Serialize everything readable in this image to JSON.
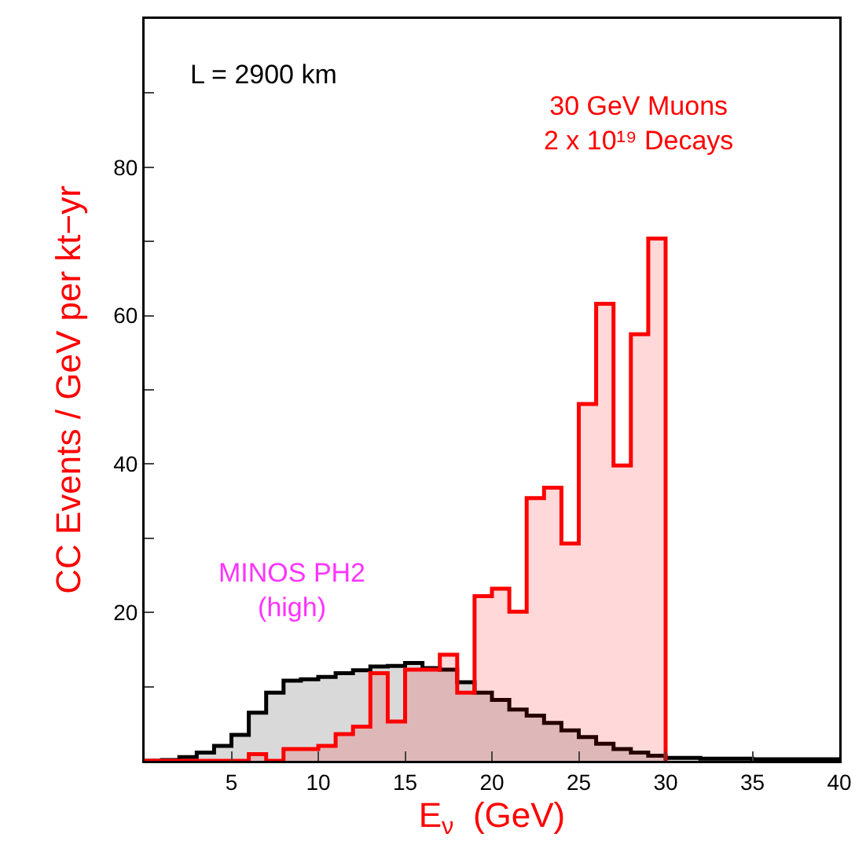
{
  "chart_data": {
    "type": "histogram",
    "xlabel": "E$_{ν}$  (GeV)",
    "ylabel": "CC Events / GeV per kt−yr",
    "annotations": [
      "L = 2900 km"
    ],
    "xlim": [
      0,
      40
    ],
    "xticks": [
      5,
      10,
      15,
      20,
      25,
      30,
      35,
      40
    ],
    "ylim": [
      0,
      100
    ],
    "yticks": [
      {
        "value": 10,
        "label": null
      },
      20,
      {
        "value": 30,
        "label": null
      },
      40,
      {
        "value": 50,
        "label": null
      },
      60,
      {
        "value": 70,
        "label": null
      },
      80,
      {
        "value": 90,
        "label": null
      }
    ],
    "grid": false,
    "legend": false,
    "bins": [
      0,
      1,
      2,
      3,
      4,
      5,
      6,
      7,
      8,
      9,
      10,
      11,
      12,
      13,
      14,
      15,
      16,
      17,
      18,
      19,
      20,
      21,
      22,
      23,
      24,
      25,
      26,
      27,
      28,
      29,
      30,
      31,
      32,
      33,
      34,
      35,
      36,
      37,
      38,
      39,
      40
    ],
    "series": [
      {
        "name": "MINOS PH2\n(high)",
        "color": "#000000",
        "values": [
          0,
          0.1,
          0.5,
          1.1,
          2.0,
          3.5,
          6.5,
          9.2,
          10.8,
          11.0,
          11.3,
          11.8,
          12.2,
          12.7,
          12.8,
          13.2,
          12.5,
          12.3,
          10.6,
          9.2,
          8.2,
          6.9,
          6.1,
          5.1,
          4.1,
          3.2,
          2.3,
          1.6,
          1.1,
          0.7,
          0.4,
          0.4,
          0.3,
          0.3,
          0.3,
          0.2,
          0.2,
          0.2,
          0.2,
          0.2
        ]
      },
      {
        "name": "30 GeV Muons\n2 x 10¹⁹ Decays",
        "color": "#ff0000",
        "bins": [
          0,
          1,
          2,
          3,
          4,
          5,
          6,
          7,
          8,
          9,
          10,
          11,
          12,
          13,
          14,
          15,
          16,
          17,
          18,
          19,
          20,
          21,
          22,
          23,
          24,
          25,
          26,
          27,
          28,
          29,
          30
        ],
        "values": [
          0,
          0,
          0,
          0,
          0,
          0,
          0.9,
          0,
          1.6,
          1.6,
          2.0,
          3.6,
          4.6,
          11.8,
          5.3,
          12.3,
          12.3,
          14.3,
          9.2,
          22.2,
          23.2,
          20.1,
          35.4,
          36.8,
          29.3,
          48.1,
          61.6,
          39.8,
          57.5,
          70.4
        ]
      }
    ]
  }
}
